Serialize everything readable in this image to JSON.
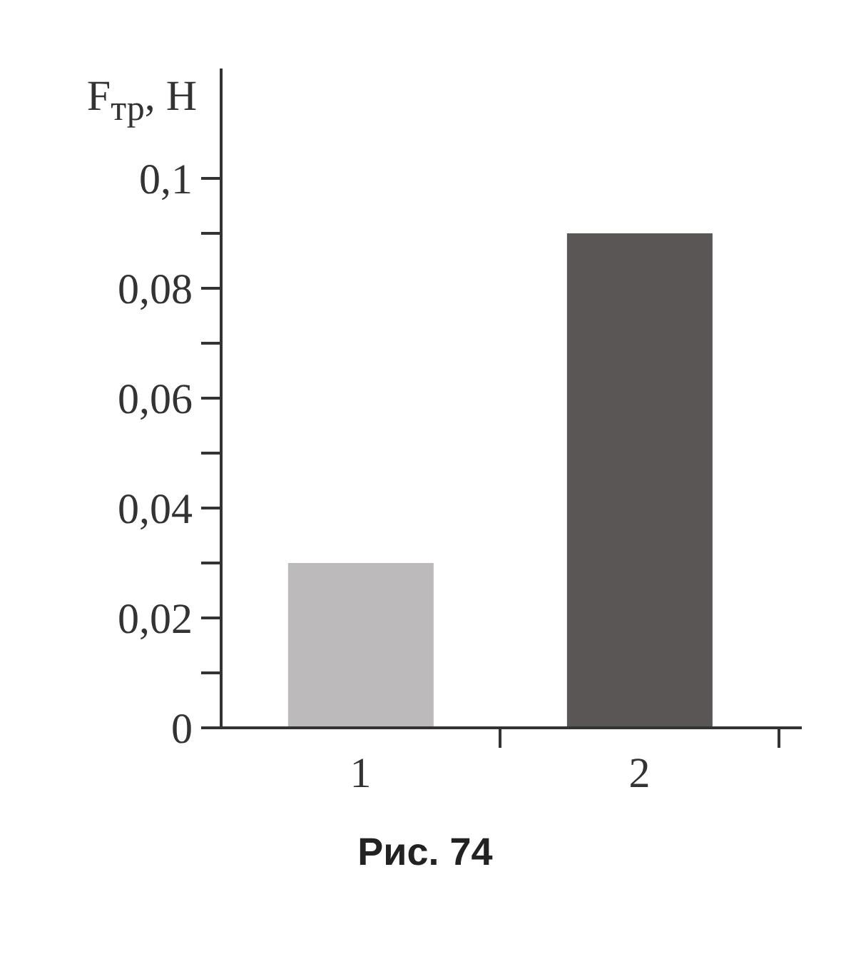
{
  "chart_data": {
    "type": "bar",
    "ylabel": "F$_{тр}$, Н",
    "annotations": [
      "Рис. 74"
    ],
    "categories": [
      "1",
      "2"
    ],
    "values": [
      0.03,
      0.09
    ],
    "colors": [
      "#bcbaba",
      "#5a5656"
    ],
    "ylim": [
      0,
      0.12
    ],
    "yticks": [
      0,
      {
        "value": 0.01,
        "label": null
      },
      {
        "value": 0.02,
        "label": "0,02"
      },
      {
        "value": 0.03,
        "label": null
      },
      {
        "value": 0.04,
        "label": "0,04"
      },
      {
        "value": 0.05,
        "label": null
      },
      {
        "value": 0.06,
        "label": "0,06"
      },
      {
        "value": 0.07,
        "label": null
      },
      {
        "value": 0.08,
        "label": "0,08"
      },
      {
        "value": 0.09,
        "label": null
      },
      {
        "value": 0.1,
        "label": "0,1"
      }
    ]
  }
}
